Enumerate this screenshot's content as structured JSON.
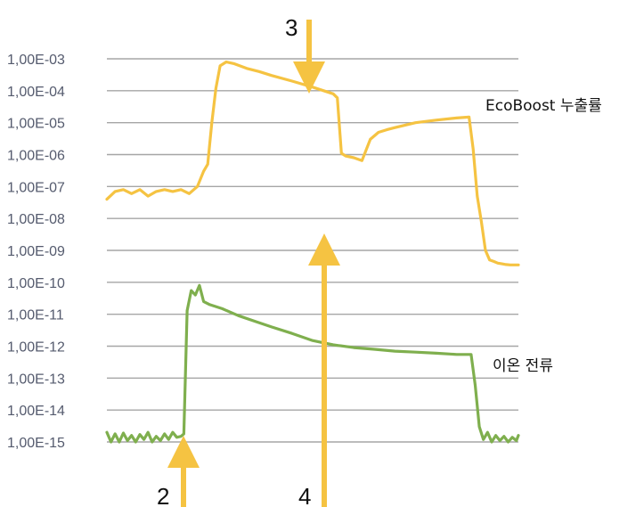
{
  "chart_data": {
    "type": "line",
    "y_scale": "log",
    "ylim": [
      1e-15,
      0.001
    ],
    "y_tick_labels": [
      "1,00E-03",
      "1,00E-04",
      "1,00E-05",
      "1,00E-06",
      "1,00E-07",
      "1,00E-08",
      "1,00E-09",
      "1,00E-10",
      "1,00E-11",
      "1,00E-12",
      "1,00E-13",
      "1,00E-14",
      "1,00E-15"
    ],
    "xlim": [
      0,
      100
    ],
    "grid": true,
    "series": [
      {
        "name": "EcoBoost 누출률",
        "color": "#f5c342",
        "x": [
          0,
          2,
          4,
          6,
          8,
          10,
          12,
          14,
          16,
          18,
          20,
          22,
          23.5,
          24.5,
          25.5,
          26.5,
          27.5,
          29,
          31,
          34,
          37,
          40,
          45,
          50,
          55,
          56,
          57,
          58,
          60,
          62,
          64,
          66,
          68,
          70,
          75,
          80,
          85,
          88,
          89,
          90,
          91,
          92,
          93,
          94,
          95,
          96,
          97,
          98,
          100
        ],
        "y": [
          4e-08,
          7e-08,
          8e-08,
          6e-08,
          8e-08,
          5e-08,
          7e-08,
          8e-08,
          7e-08,
          8e-08,
          6e-08,
          1e-07,
          3e-07,
          5e-07,
          1e-05,
          0.00012,
          0.0006,
          0.0008,
          0.0007,
          0.0005,
          0.0004,
          0.0003,
          0.0002,
          0.00013,
          8e-05,
          6e-05,
          1.1e-06,
          9e-07,
          8e-07,
          6.5e-07,
          3e-06,
          5e-06,
          6e-06,
          7e-06,
          1e-05,
          1.2e-05,
          1.4e-05,
          1.5e-05,
          1.5e-06,
          5e-08,
          8e-09,
          1e-09,
          5e-10,
          4.5e-10,
          4e-10,
          3.8e-10,
          3.6e-10,
          3.5e-10,
          3.5e-10
        ]
      },
      {
        "name": "이온 전류",
        "color": "#7faf4e",
        "x": [
          0,
          1,
          2,
          3,
          4,
          5,
          6,
          7,
          8,
          9,
          10,
          11,
          12,
          13,
          14,
          15,
          16,
          17,
          18,
          18.7,
          19.5,
          20.5,
          21.5,
          22.5,
          23.5,
          25,
          28,
          32,
          36,
          40,
          45,
          50,
          55,
          60,
          65,
          70,
          75,
          80,
          85,
          88.5,
          89.5,
          90.5,
          91.5,
          92.5,
          93.5,
          94.5,
          95.5,
          96.5,
          97.5,
          98.5,
          99.5,
          100
        ],
        "y": [
          2e-15,
          1e-15,
          1.8e-15,
          1e-15,
          1.9e-15,
          1.1e-15,
          1.6e-15,
          1e-15,
          1.7e-15,
          1.2e-15,
          2e-15,
          1e-15,
          1.5e-15,
          1.1e-15,
          1.8e-15,
          1.2e-15,
          2e-15,
          1.4e-15,
          1.5e-15,
          1.8e-15,
          1.3e-11,
          5.5e-11,
          4e-11,
          8e-11,
          2.5e-11,
          2e-11,
          1.5e-11,
          9e-12,
          6e-12,
          4e-12,
          2.5e-12,
          1.5e-12,
          1.1e-12,
          9e-13,
          8e-13,
          7e-13,
          6.5e-13,
          6e-13,
          5.5e-13,
          5.5e-13,
          6e-14,
          3e-15,
          1.2e-15,
          2e-15,
          1e-15,
          1.6e-15,
          1.1e-15,
          1.5e-15,
          1e-15,
          1.4e-15,
          1.1e-15,
          1.6e-15
        ]
      }
    ],
    "annotations": [
      {
        "label": "2",
        "x": 18.7,
        "direction": "up"
      },
      {
        "label": "3",
        "x": 49.5,
        "direction": "down"
      },
      {
        "label": "4",
        "x": 52.5,
        "direction": "up"
      }
    ]
  }
}
